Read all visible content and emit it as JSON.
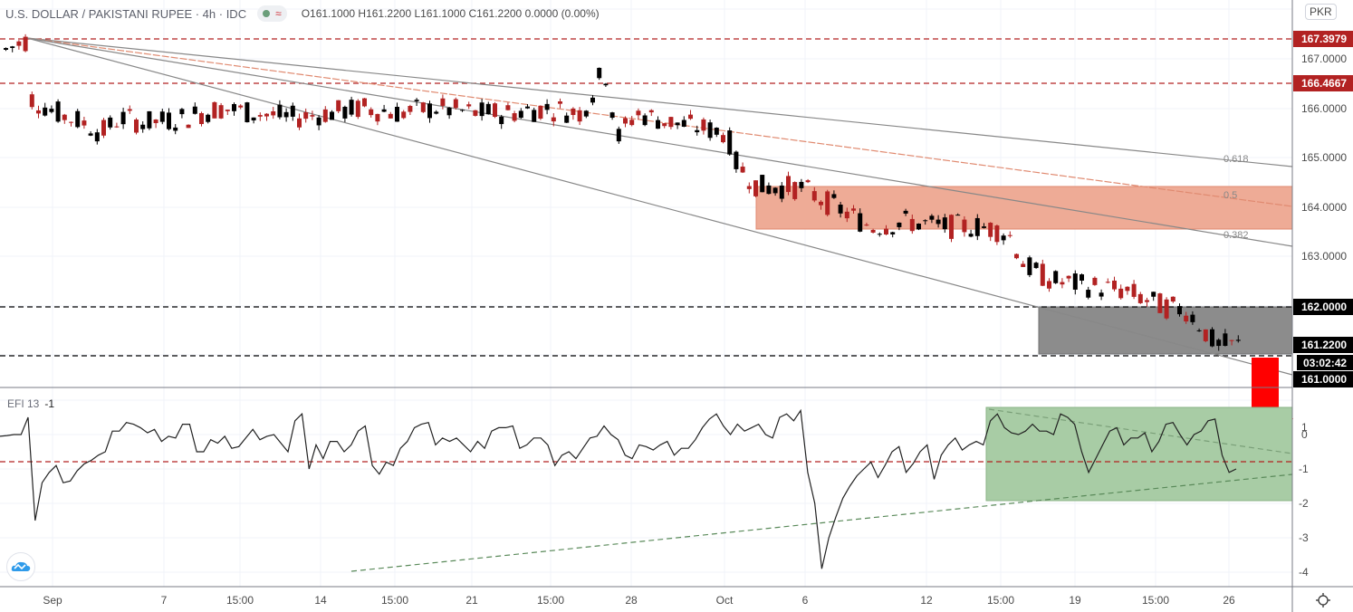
{
  "header": {
    "symbol_title": "U.S. DOLLAR / PAKISTANI RUPEE · 4h · IDC",
    "status_icon": "market-status-dot",
    "wave_icon": "≈",
    "ohlc": "O161.1000 H161.2200 L161.1000 C161.2200 0.0000 (0.00%)",
    "currency": "PKR"
  },
  "indicator": {
    "name": "EFI 13",
    "value": "-1"
  },
  "colors": {
    "bearish": "#b22222",
    "bullish": "#000000",
    "resistance_zone": "#ee9f85",
    "support_zone": "#808080",
    "efi_zone": "#9dc59a",
    "arrow": "#ff0000",
    "level_line": "#b22222",
    "price_label_red": "#b22222",
    "price_label_black": "#000000"
  },
  "chart_data": [
    {
      "type": "candlestick",
      "title": "U.S. DOLLAR / PAKISTANI RUPEE · 4h · IDC",
      "ylabel": "PKR",
      "ylim": [
        160.85,
        168.0
      ],
      "y_ticks": [
        "167.0000",
        "166.0000",
        "165.0000",
        "164.0000",
        "163.0000"
      ],
      "x_ticks": [
        "Sep",
        "7",
        "15:00",
        "14",
        "15:00",
        "21",
        "15:00",
        "28",
        "Oct",
        "6",
        "12",
        "15:00",
        "19",
        "15:00",
        "26"
      ],
      "price_labels": [
        {
          "value": "167.3979",
          "style": "red"
        },
        {
          "value": "166.4667",
          "style": "red"
        },
        {
          "value": "162.0000",
          "style": "black"
        },
        {
          "value": "161.2200",
          "style": "black"
        },
        {
          "value": "03:02:42",
          "style": "countdown"
        },
        {
          "value": "161.0000",
          "style": "black"
        }
      ],
      "horizontal_levels": [
        167.3979,
        166.4667,
        162.0,
        161.0
      ],
      "fib_fan_labels": [
        "0.618",
        "0.5",
        "0.382"
      ],
      "zones": [
        {
          "name": "resistance",
          "from": 163.55,
          "to": 164.45,
          "x_start": "Oct 2"
        },
        {
          "name": "support",
          "from": 161.0,
          "to": 162.0,
          "x_start": "Oct 19"
        }
      ],
      "ohlc_last": {
        "open": 161.1,
        "high": 161.22,
        "low": 161.1,
        "close": 161.22,
        "change": "0.0000 (0.00%)"
      },
      "trend_summary": "Price falls from ~167.40 in early Sep, ranges 165.5-166.5 through Sep, drops to 164-163.5 in early Oct, breaks to ~162.5 mid Oct and ~161.2 by Oct 26"
    },
    {
      "type": "line",
      "title": "EFI 13",
      "last_value": -1,
      "ylim": [
        -4.3,
        1.3
      ],
      "y_ticks": [
        "1",
        "0",
        "-1",
        "-2",
        "-3",
        "-4"
      ],
      "reference_level": -0.8,
      "series": [
        {
          "name": "EFI 13",
          "values": [
            -0.05,
            -0.03,
            0.0,
            0.0,
            0.5,
            -2.5,
            -1.4,
            -1.1,
            -0.9,
            -1.4,
            -1.35,
            -1.05,
            -0.85,
            -0.75,
            -0.6,
            -0.5,
            0.1,
            0.1,
            0.35,
            0.3,
            0.2,
            0.05,
            0.15,
            -0.2,
            -0.05,
            -0.1,
            0.3,
            0.3,
            -0.5,
            -0.5,
            -0.15,
            -0.25,
            -0.05,
            -0.4,
            -0.35,
            -0.1,
            0.15,
            -0.15,
            -0.05,
            0.0,
            -0.25,
            -0.5,
            0.4,
            0.6,
            -1.0,
            -0.3,
            -0.7,
            -0.2,
            -0.2,
            -0.5,
            -0.3,
            0.1,
            0.25,
            -0.9,
            -1.15,
            -0.8,
            -0.9,
            -0.4,
            -0.2,
            0.2,
            0.3,
            0.35,
            -0.3,
            -0.1,
            -0.2,
            -0.1,
            -0.3,
            -0.5,
            -0.2,
            -0.4,
            0.1,
            0.2,
            0.2,
            0.25,
            -0.4,
            -0.3,
            -0.1,
            -0.1,
            -0.3,
            -0.9,
            -0.6,
            -0.5,
            -0.7,
            -0.4,
            -0.1,
            -0.05,
            0.25,
            0.0,
            -0.15,
            -0.6,
            -0.7,
            -0.3,
            -0.35,
            -0.45,
            -0.3,
            -0.2,
            -0.6,
            -0.4,
            -0.4,
            -0.15,
            0.2,
            0.45,
            0.6,
            0.25,
            0.0,
            0.3,
            0.1,
            0.2,
            0.3,
            0.0,
            -0.1,
            0.5,
            0.6,
            0.4,
            0.7,
            -1.1,
            -2.0,
            -3.9,
            -3.0,
            -2.4,
            -1.85,
            -1.5,
            -1.2,
            -1.0,
            -0.8,
            -1.25,
            -0.9,
            -0.5,
            -0.35,
            -1.1,
            -0.85,
            -0.5,
            -0.3,
            -1.3,
            -0.6,
            -0.3,
            -0.1,
            -0.45,
            -0.3,
            -0.2,
            -0.3,
            0.4,
            0.6,
            0.2,
            0.05,
            0.0,
            0.1,
            0.3,
            0.1,
            0.1,
            0.0,
            0.6,
            0.5,
            0.3,
            -0.5,
            -1.1,
            -0.7,
            -0.3,
            0.1,
            0.2,
            -0.3,
            -0.1,
            -0.1,
            0.05,
            -0.5,
            -0.2,
            0.3,
            0.35,
            0.0,
            -0.3,
            0.0,
            0.1,
            0.4,
            0.45,
            -0.6,
            -1.1,
            -1.0
          ]
        }
      ],
      "zones": [
        {
          "name": "efi-consolidation",
          "from": -1.95,
          "to": 0.75,
          "x_start": "Oct 14 15:00"
        }
      ],
      "annotations": [
        "downward red arrow",
        "converging dashed triangle lines"
      ]
    }
  ]
}
